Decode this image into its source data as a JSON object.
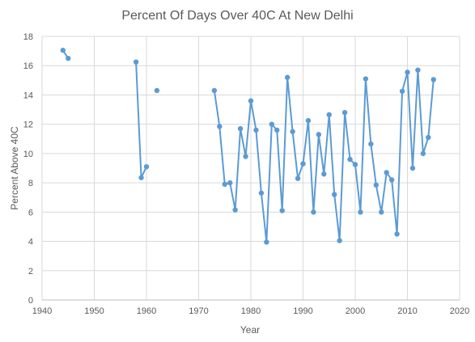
{
  "chart_data": {
    "type": "line",
    "title": "Percent Of Days Over 40C At New Delhi",
    "xlabel": "Year",
    "ylabel": "Percent Above 40C",
    "xlim": [
      1940,
      2020
    ],
    "ylim": [
      0,
      18
    ],
    "x_ticks": [
      "1940",
      "1950",
      "1960",
      "1970",
      "1980",
      "1990",
      "2000",
      "2010",
      "2020"
    ],
    "y_ticks": [
      "0",
      "2",
      "4",
      "6",
      "8",
      "10",
      "12",
      "14",
      "16",
      "18"
    ],
    "grid": true,
    "legend": "none",
    "color": "#5b9bd5",
    "series": [
      {
        "segments": [
          [
            [
              1944,
              17.05
            ],
            [
              1945,
              16.5
            ]
          ],
          [
            [
              1958,
              16.25
            ],
            [
              1959,
              8.35
            ],
            [
              1960,
              9.1
            ]
          ],
          [
            [
              1962,
              14.3
            ]
          ],
          [
            [
              1973,
              14.3
            ],
            [
              1974,
              11.85
            ],
            [
              1975,
              7.9
            ],
            [
              1976,
              8.0
            ],
            [
              1977,
              6.15
            ],
            [
              1978,
              11.7
            ],
            [
              1979,
              9.8
            ],
            [
              1980,
              13.6
            ],
            [
              1981,
              11.6
            ],
            [
              1982,
              7.3
            ],
            [
              1983,
              3.95
            ],
            [
              1984,
              12.0
            ],
            [
              1985,
              11.6
            ],
            [
              1986,
              6.1
            ],
            [
              1987,
              15.2
            ],
            [
              1988,
              11.5
            ],
            [
              1989,
              8.3
            ],
            [
              1990,
              9.3
            ],
            [
              1991,
              12.25
            ],
            [
              1992,
              6.0
            ],
            [
              1993,
              11.3
            ],
            [
              1994,
              8.6
            ],
            [
              1995,
              12.65
            ],
            [
              1996,
              7.2
            ],
            [
              1997,
              4.05
            ],
            [
              1998,
              12.8
            ],
            [
              1999,
              9.6
            ],
            [
              2000,
              9.25
            ],
            [
              2001,
              6.0
            ],
            [
              2002,
              15.1
            ],
            [
              2003,
              10.65
            ],
            [
              2004,
              7.85
            ],
            [
              2005,
              6.0
            ],
            [
              2006,
              8.7
            ],
            [
              2007,
              8.2
            ],
            [
              2008,
              4.5
            ],
            [
              2009,
              14.25
            ],
            [
              2010,
              15.55
            ],
            [
              2011,
              9.0
            ],
            [
              2012,
              15.7
            ],
            [
              2013,
              10.0
            ],
            [
              2014,
              11.1
            ],
            [
              2015,
              15.05
            ]
          ]
        ]
      }
    ]
  }
}
